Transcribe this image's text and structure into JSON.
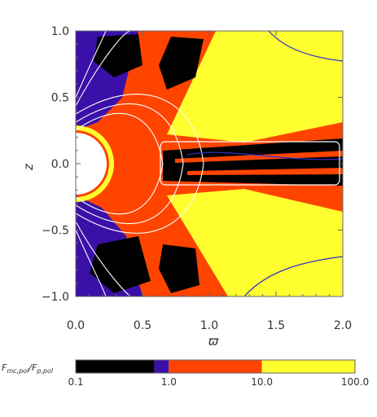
{
  "chart_data": {
    "type": "heatmap",
    "title": "",
    "xlabel": "ϖ",
    "ylabel": "z",
    "xlim": [
      0.0,
      2.0
    ],
    "ylim": [
      -1.0,
      1.0
    ],
    "x_ticks": [
      "0.0",
      "0.5",
      "1.0",
      "1.5",
      "2.0"
    ],
    "y_ticks": [
      "1.0",
      "0.5",
      "0.0",
      "−0.5",
      "−1.0"
    ],
    "colorbar": {
      "label_main": "F",
      "label_main_sub": "mc,pol",
      "label_sep": "/",
      "label_den": "F",
      "label_den_sub": "p,pol",
      "tick_labels": [
        "0.1",
        "1.0",
        "10.0",
        "100.0"
      ],
      "ticks": [
        0.1,
        1.0,
        10.0,
        100.0
      ],
      "scale": "log",
      "bands": [
        {
          "from": 0.1,
          "to": 0.7,
          "color": "#000000"
        },
        {
          "from": 0.7,
          "to": 1.0,
          "color": "#3a10a8"
        },
        {
          "from": 1.0,
          "to": 10.0,
          "color": "#ff4400"
        },
        {
          "from": 10.0,
          "to": 100.0,
          "color": "#ffff30"
        }
      ]
    },
    "colors": {
      "black": "#000000",
      "purple": "#3a10a8",
      "orange": "#ff4400",
      "yellow": "#ffff30",
      "white": "#ffffff",
      "contour": "#ffffff",
      "blue_contour": "#3030c8"
    },
    "box_region": {
      "x": [
        0.62,
        1.9
      ],
      "z": [
        -0.15,
        0.15
      ]
    }
  }
}
